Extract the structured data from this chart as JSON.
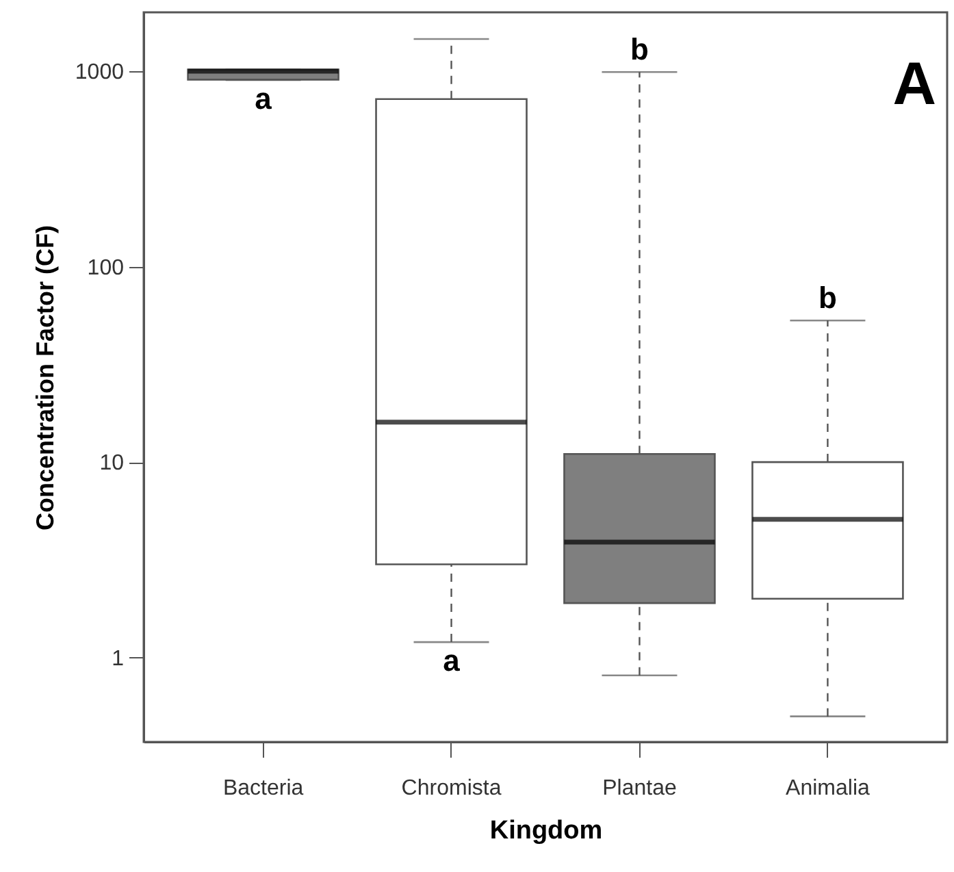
{
  "chart_data": {
    "type": "box",
    "xlabel": "Kingdom",
    "ylabel": "Concentration Factor (CF)",
    "categories": [
      "Bacteria",
      "Chromista",
      "Plantae",
      "Animalia"
    ],
    "boxes": [
      {
        "low": 900,
        "q1": 905,
        "median": 1000,
        "q3": 1020,
        "high": 1020
      },
      {
        "low": 1.2,
        "q1": 3.0,
        "median": 16,
        "q3": 720,
        "high": 1460
      },
      {
        "low": 0.81,
        "q1": 1.9,
        "median": 3.9,
        "q3": 11,
        "high": 990
      },
      {
        "low": 0.5,
        "q1": 2.0,
        "median": 5.1,
        "q3": 10,
        "high": 53
      }
    ],
    "colors": [
      "#7f7f7f",
      "#ffffff",
      "#7f7f7f",
      "#ffffff"
    ],
    "log": true,
    "ylim": [
      0.37,
      2000
    ],
    "yticks": [
      1,
      10,
      100,
      1000
    ],
    "grid": false,
    "annotations": [
      {
        "text": "a",
        "x": "Bacteria",
        "y": 900
      },
      {
        "text": "a",
        "x": "Chromista",
        "y": 1.2
      },
      {
        "text": "b",
        "x": "Plantae",
        "y": 990
      },
      {
        "text": "b",
        "x": "Animalia",
        "y": 53
      },
      "A"
    ]
  }
}
